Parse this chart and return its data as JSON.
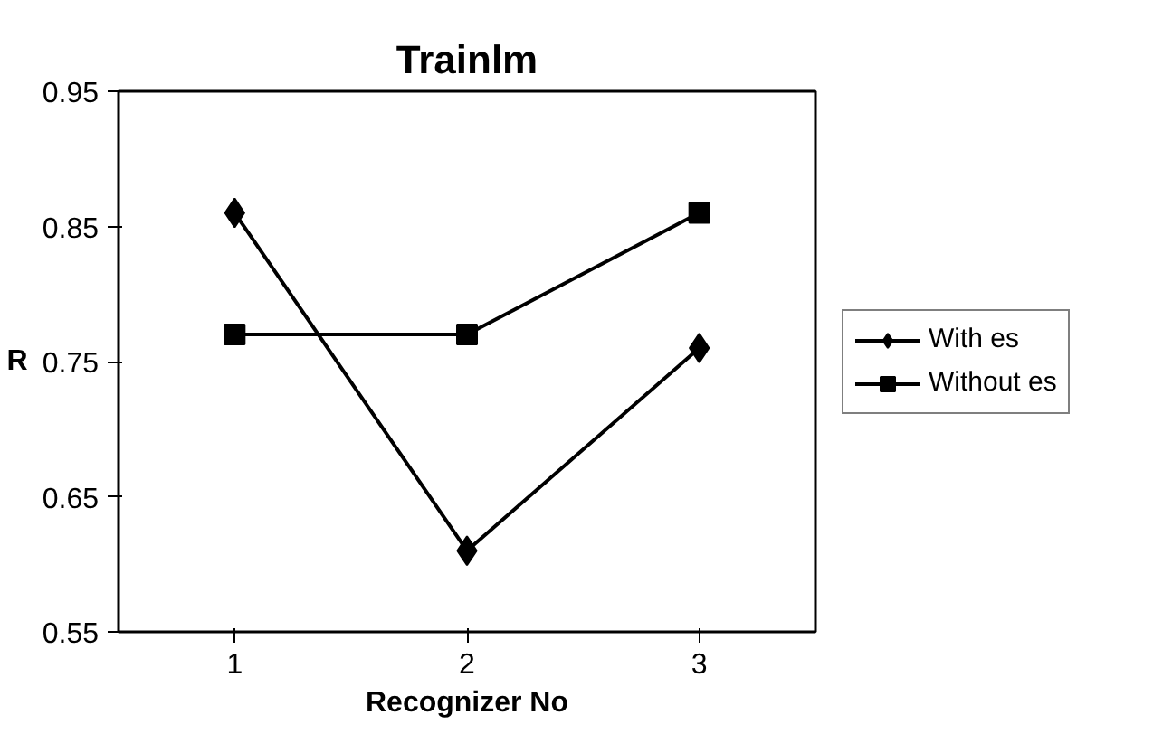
{
  "chart_data": {
    "type": "line",
    "title": "Trainlm",
    "xlabel": "Recognizer No",
    "ylabel": "R",
    "categories": [
      "1",
      "2",
      "3"
    ],
    "series": [
      {
        "name": "With es",
        "color": "#000000",
        "values": [
          0.86,
          0.61,
          0.76
        ],
        "marker": "diamond"
      },
      {
        "name": "Without es",
        "color": "#000000",
        "values": [
          0.77,
          0.77,
          0.86
        ],
        "marker": "square"
      }
    ],
    "ylim": [
      0.55,
      0.95
    ],
    "yticks": [
      0.55,
      0.65,
      0.75,
      0.85,
      0.95
    ],
    "grid": false,
    "legend": "right",
    "line_style": "solid"
  }
}
